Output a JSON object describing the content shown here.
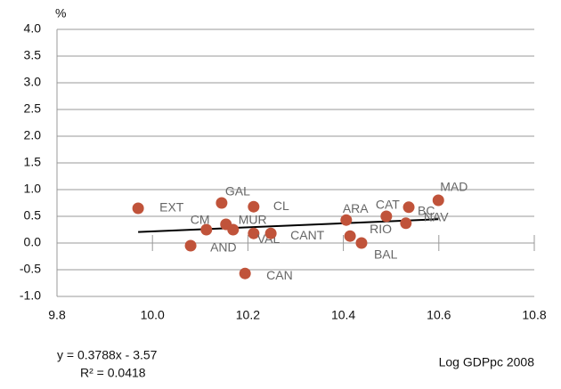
{
  "chart_data": {
    "type": "scatter",
    "y_label": "%",
    "x_label": "Log GDPpc 2008",
    "x": [
      9.97,
      10.145,
      10.212,
      10.113,
      10.08,
      10.154,
      10.169,
      10.212,
      10.248,
      10.194,
      10.406,
      10.414,
      10.438,
      10.49,
      10.537,
      10.531,
      10.599
    ],
    "values": [
      0.65,
      0.75,
      0.68,
      0.25,
      -0.05,
      0.35,
      0.25,
      0.18,
      0.18,
      -0.57,
      0.43,
      0.13,
      0.0,
      0.5,
      0.67,
      0.37,
      0.8
    ],
    "point_labels": [
      "EXT",
      "GAL",
      "CL",
      "CM",
      "AND",
      "MUR",
      null,
      "VAL",
      "CANT",
      "CAN",
      "ARA",
      "RIO",
      "BAL",
      "CAT",
      "BC",
      "NAV",
      "MAD"
    ],
    "color": "#c0533a",
    "trendline": {
      "slope": 0.3788,
      "intercept": -3.57,
      "equation": "y = 0.3788x - 3.57",
      "r_squared": "R² = 0.0418",
      "color": "#000000"
    },
    "xlim": [
      9.8,
      10.8
    ],
    "xticks": [
      9.8,
      {
        "value": 10,
        "label": "10.0"
      },
      10.2,
      10.4,
      10.6,
      10.8
    ],
    "ylim": [
      -1,
      4
    ],
    "yticks": [
      {
        "value": -1,
        "label": "-1.0"
      },
      -0.5,
      {
        "value": 0,
        "label": "0.0"
      },
      0.5,
      {
        "value": 1,
        "label": "1.0"
      },
      1.5,
      {
        "value": 2,
        "label": "2.0"
      },
      2.5,
      {
        "value": 3,
        "label": "3.0"
      },
      3.5,
      {
        "value": 4,
        "label": "4.0"
      }
    ],
    "grid": true
  }
}
